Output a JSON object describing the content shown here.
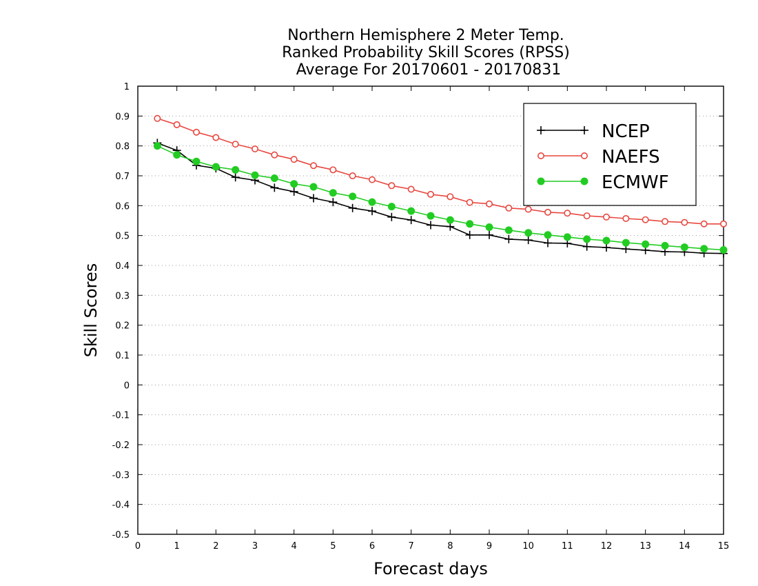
{
  "chart_data": {
    "type": "line",
    "title_lines": [
      "Northern Hemisphere 2 Meter Temp.",
      "Ranked Probability Skill Scores (RPSS)",
      "Average For 20170601 - 20170831"
    ],
    "xlabel": "Forecast days",
    "ylabel": "Skill Scores",
    "xlim": [
      0,
      15
    ],
    "ylim": [
      -0.5,
      1
    ],
    "x_ticks": [
      0,
      1,
      2,
      3,
      4,
      5,
      6,
      7,
      8,
      9,
      10,
      11,
      12,
      13,
      14,
      15
    ],
    "x_tick_labels": [
      "0",
      "1",
      "2",
      "3",
      "4",
      "5",
      "6",
      "7",
      "8",
      "9",
      "10",
      "11",
      "12",
      "13",
      "14",
      "15"
    ],
    "y_ticks": [
      -0.5,
      -0.4,
      -0.3,
      -0.2,
      -0.1,
      0,
      0.1,
      0.2,
      0.3,
      0.4,
      0.5,
      0.6,
      0.7,
      0.8,
      0.9,
      1
    ],
    "y_tick_labels": [
      "-0.5",
      "-0.4",
      "-0.3",
      "-0.2",
      "-0.1",
      "0",
      "0.1",
      "0.2",
      "0.3",
      "0.4",
      "0.5",
      "0.6",
      "0.7",
      "0.8",
      "0.9",
      "1"
    ],
    "grid": "horizontal dotted",
    "legend_position": "top-right",
    "x": [
      0.5,
      1,
      1.5,
      2,
      2.5,
      3,
      3.5,
      4,
      4.5,
      5,
      5.5,
      6,
      6.5,
      7,
      7.5,
      8,
      8.5,
      9,
      9.5,
      10,
      10.5,
      11,
      11.5,
      12,
      12.5,
      13,
      13.5,
      14,
      14.5,
      15
    ],
    "series": [
      {
        "name": "NCEP",
        "color": "#000000",
        "marker": "plus",
        "values": [
          0.81,
          0.785,
          0.735,
          0.725,
          0.695,
          0.685,
          0.66,
          0.647,
          0.625,
          0.612,
          0.592,
          0.582,
          0.562,
          0.552,
          0.535,
          0.53,
          0.502,
          0.502,
          0.488,
          0.485,
          0.475,
          0.474,
          0.463,
          0.46,
          0.455,
          0.451,
          0.446,
          0.445,
          0.441,
          0.44
        ]
      },
      {
        "name": "NAEFS",
        "color": "#e8473f",
        "marker": "open-circle",
        "values": [
          0.892,
          0.871,
          0.846,
          0.828,
          0.806,
          0.79,
          0.77,
          0.755,
          0.734,
          0.72,
          0.7,
          0.687,
          0.667,
          0.655,
          0.638,
          0.63,
          0.611,
          0.606,
          0.592,
          0.588,
          0.578,
          0.575,
          0.566,
          0.562,
          0.557,
          0.553,
          0.547,
          0.544,
          0.539,
          0.539
        ]
      },
      {
        "name": "ECMWF",
        "color": "#22cc22",
        "marker": "filled-circle",
        "values": [
          0.8,
          0.77,
          0.748,
          0.73,
          0.72,
          0.702,
          0.692,
          0.673,
          0.663,
          0.643,
          0.631,
          0.612,
          0.597,
          0.582,
          0.566,
          0.552,
          0.539,
          0.528,
          0.518,
          0.509,
          0.502,
          0.495,
          0.488,
          0.483,
          0.476,
          0.471,
          0.466,
          0.461,
          0.456,
          0.452
        ]
      }
    ]
  }
}
